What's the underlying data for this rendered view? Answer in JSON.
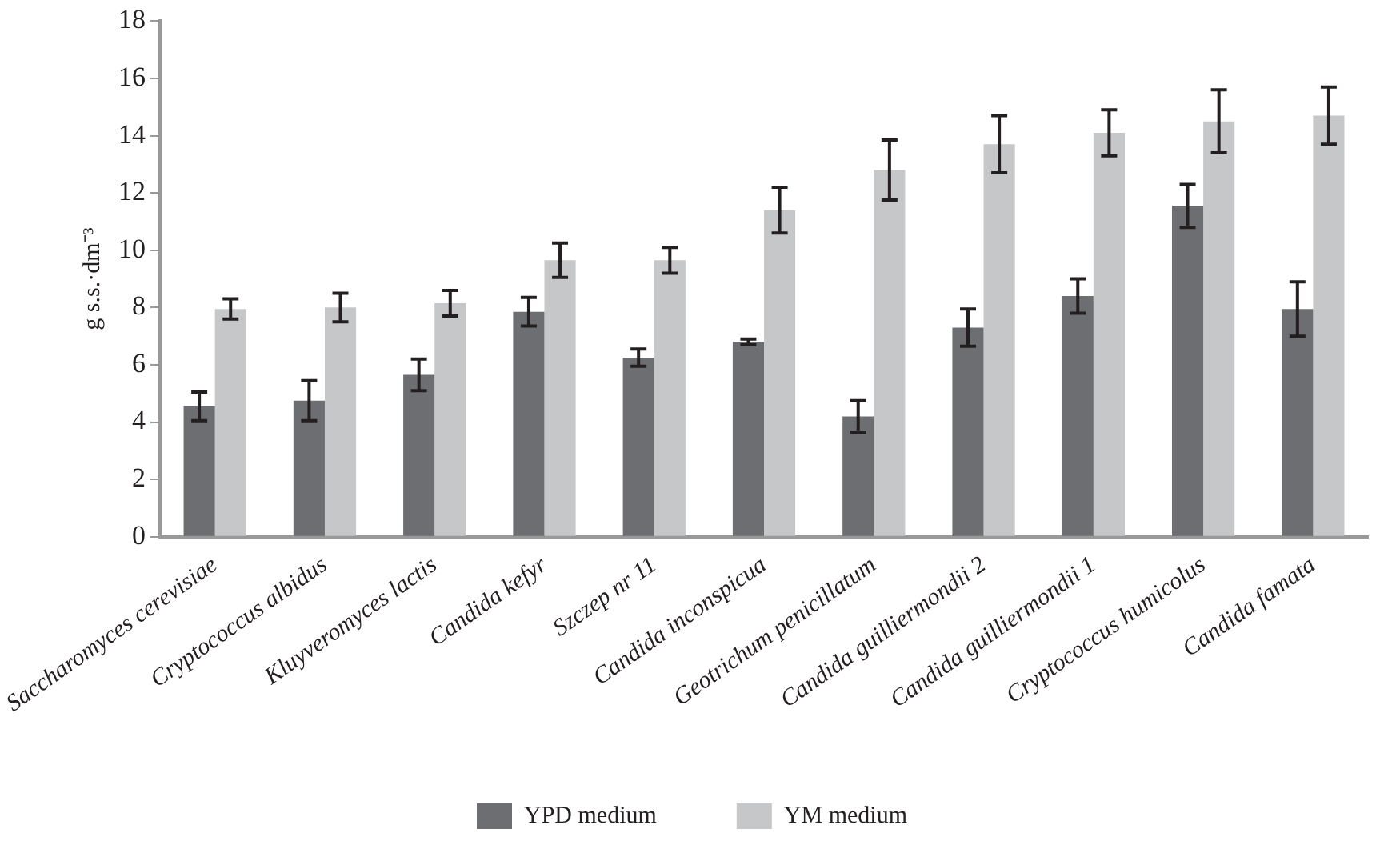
{
  "chart_data": {
    "type": "bar",
    "ylabel": "g s.s.·dm⁻³",
    "categories": [
      "Saccharomyces cerevisiae",
      "Cryptococcus albidus",
      "Kluyveromyces lactis",
      "Candida kefyr",
      "Szczep nr 11",
      "Candida inconspicua",
      "Geotrichum penicillatum",
      "Candida guilliermondii 2",
      "Candida guilliermondii 1",
      "Cryptococcus humicolus",
      "Candida famata"
    ],
    "series": [
      {
        "name": "YPD medium",
        "color": "#6d6e71",
        "values": [
          4.55,
          4.75,
          5.65,
          7.85,
          6.25,
          6.8,
          4.2,
          7.3,
          8.4,
          11.55,
          7.95
        ],
        "errors": [
          0.5,
          0.7,
          0.55,
          0.5,
          0.3,
          0.1,
          0.55,
          0.65,
          0.6,
          0.75,
          0.95
        ]
      },
      {
        "name": "YM medium",
        "color": "#c6c7c9",
        "values": [
          7.95,
          8.0,
          8.15,
          9.65,
          9.65,
          11.4,
          12.8,
          13.7,
          14.1,
          14.5,
          14.7
        ],
        "errors": [
          0.35,
          0.5,
          0.45,
          0.6,
          0.45,
          0.8,
          1.05,
          1.0,
          0.8,
          1.1,
          1.0
        ]
      }
    ],
    "ylim": [
      0,
      18
    ],
    "yticks": [
      0,
      2,
      4,
      6,
      8,
      10,
      12,
      14,
      16,
      18
    ],
    "grid": false,
    "legend": "bottom"
  }
}
